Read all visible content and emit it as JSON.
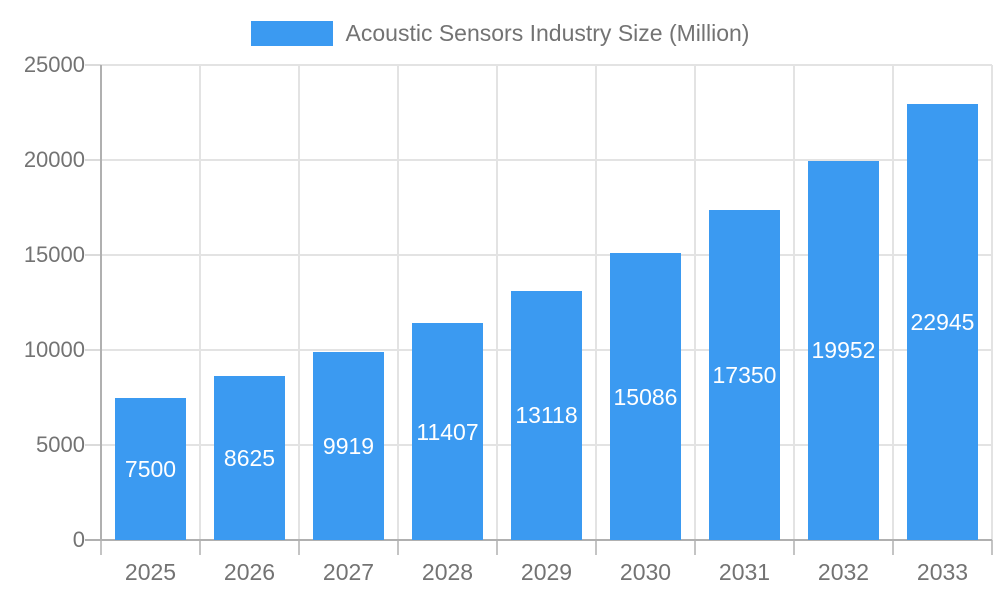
{
  "chart_data": {
    "type": "bar",
    "title": "Acoustic Sensors Industry Size (Million)",
    "legend": {
      "label": "Acoustic Sensors Industry Size (Million)",
      "position": "top-center"
    },
    "categories": [
      "2025",
      "2026",
      "2027",
      "2028",
      "2029",
      "2030",
      "2031",
      "2032",
      "2033"
    ],
    "series": [
      {
        "name": "Acoustic Sensors Industry Size (Million)",
        "values": [
          7500,
          8625,
          9919,
          11407,
          13118,
          15086,
          17350,
          19952,
          22945
        ]
      }
    ],
    "value_labels_visible": true,
    "xlabel": "",
    "ylabel": "",
    "ylim": [
      0,
      25000
    ],
    "ytick_step": 5000,
    "yticks": [
      "0",
      "5000",
      "10000",
      "15000",
      "20000",
      "25000"
    ],
    "grid": "horizontal-and-vertical",
    "colors": {
      "bar": "#3B9AF1",
      "gridline": "#E3E3E3",
      "axis": "#B0B0B0",
      "x_tick_mark": "#C4C4C4",
      "y_tick_mark": "#DBDBDB",
      "tick_label_text": "#737373",
      "legend_text": "#737373",
      "value_label_text": "#FFFFFF",
      "background": "#FFFFFF"
    }
  }
}
